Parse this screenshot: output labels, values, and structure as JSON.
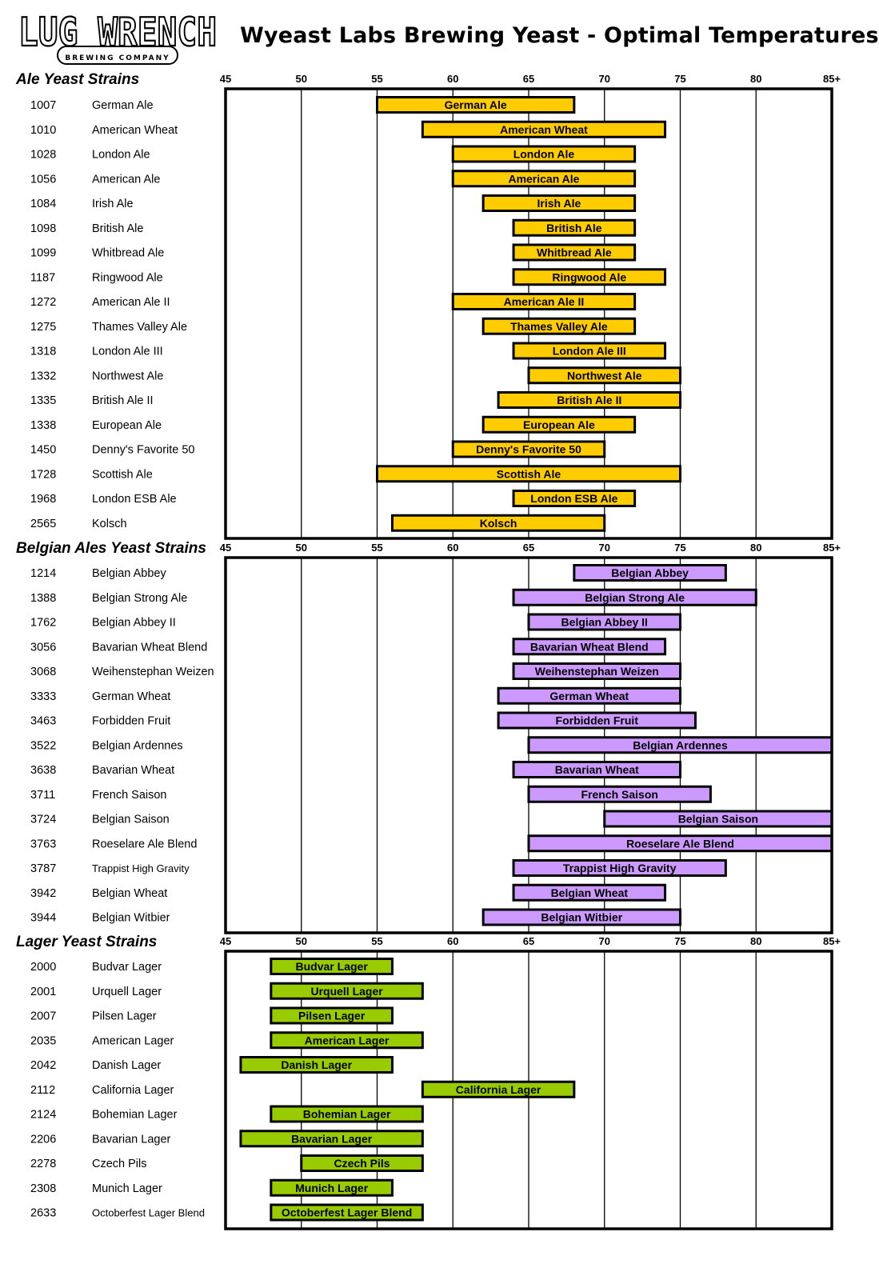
{
  "header": {
    "title": "Wyeast Labs Brewing Yeast - Optimal Temperatures",
    "logo_text": "LUG WRENCH",
    "logo_subtext": "BREWING COMPANY"
  },
  "colors": {
    "ale": "#FFCC00",
    "belgian": "#CC99FF",
    "lager": "#99CC00",
    "border": "#000000"
  },
  "chart_data": {
    "type": "range-bar",
    "title": "Wyeast Labs Brewing Yeast - Optimal Temperatures",
    "xlim": [
      45,
      85
    ],
    "x_ticks": [
      45,
      50,
      55,
      60,
      65,
      70,
      75,
      80,
      85
    ],
    "x_tick_labels": [
      "45",
      "50",
      "55",
      "60",
      "65",
      "70",
      "75",
      "80",
      "85+"
    ],
    "grid": "vertical",
    "groups": [
      {
        "name": "Ale Yeast Strains",
        "color": "#FFCC00",
        "strains": [
          {
            "id": "1007",
            "name": "German Ale",
            "low": 55,
            "high": 68
          },
          {
            "id": "1010",
            "name": "American Wheat",
            "low": 58,
            "high": 74
          },
          {
            "id": "1028",
            "name": "London Ale",
            "low": 60,
            "high": 72
          },
          {
            "id": "1056",
            "name": "American Ale",
            "low": 60,
            "high": 72
          },
          {
            "id": "1084",
            "name": "Irish Ale",
            "low": 62,
            "high": 72
          },
          {
            "id": "1098",
            "name": "British Ale",
            "low": 64,
            "high": 72
          },
          {
            "id": "1099",
            "name": "Whitbread Ale",
            "low": 64,
            "high": 72
          },
          {
            "id": "1187",
            "name": "Ringwood Ale",
            "low": 64,
            "high": 74
          },
          {
            "id": "1272",
            "name": "American Ale II",
            "low": 60,
            "high": 72
          },
          {
            "id": "1275",
            "name": "Thames Valley Ale",
            "low": 62,
            "high": 72
          },
          {
            "id": "1318",
            "name": "London Ale III",
            "low": 64,
            "high": 74
          },
          {
            "id": "1332",
            "name": "Northwest Ale",
            "low": 65,
            "high": 75
          },
          {
            "id": "1335",
            "name": "British Ale II",
            "low": 63,
            "high": 75
          },
          {
            "id": "1338",
            "name": "European Ale",
            "low": 62,
            "high": 72
          },
          {
            "id": "1450",
            "name": "Denny's Favorite 50",
            "low": 60,
            "high": 70
          },
          {
            "id": "1728",
            "name": "Scottish Ale",
            "low": 55,
            "high": 75
          },
          {
            "id": "1968",
            "name": "London ESB Ale",
            "low": 64,
            "high": 72
          },
          {
            "id": "2565",
            "name": "Kolsch",
            "low": 56,
            "high": 70
          }
        ]
      },
      {
        "name": "Belgian Ales Yeast Strains",
        "color": "#CC99FF",
        "strains": [
          {
            "id": "1214",
            "name": "Belgian Abbey",
            "low": 68,
            "high": 78
          },
          {
            "id": "1388",
            "name": "Belgian Strong Ale",
            "low": 64,
            "high": 80
          },
          {
            "id": "1762",
            "name": "Belgian Abbey II",
            "low": 65,
            "high": 75
          },
          {
            "id": "3056",
            "name": "Bavarian Wheat Blend",
            "low": 64,
            "high": 74
          },
          {
            "id": "3068",
            "name": "Weihenstephan Weizen",
            "low": 64,
            "high": 75
          },
          {
            "id": "3333",
            "name": "German Wheat",
            "low": 63,
            "high": 75
          },
          {
            "id": "3463",
            "name": "Forbidden Fruit",
            "low": 63,
            "high": 76
          },
          {
            "id": "3522",
            "name": "Belgian Ardennes",
            "low": 65,
            "high": 85
          },
          {
            "id": "3638",
            "name": "Bavarian Wheat",
            "low": 64,
            "high": 75
          },
          {
            "id": "3711",
            "name": "French Saison",
            "low": 65,
            "high": 77
          },
          {
            "id": "3724",
            "name": "Belgian Saison",
            "low": 70,
            "high": 85
          },
          {
            "id": "3763",
            "name": "Roeselare Ale Blend",
            "low": 65,
            "high": 85
          },
          {
            "id": "3787",
            "name": "Trappist High Gravity",
            "low": 64,
            "high": 78
          },
          {
            "id": "3942",
            "name": "Belgian Wheat",
            "low": 64,
            "high": 74
          },
          {
            "id": "3944",
            "name": "Belgian Witbier",
            "low": 62,
            "high": 75
          }
        ]
      },
      {
        "name": "Lager Yeast Strains",
        "color": "#99CC00",
        "strains": [
          {
            "id": "2000",
            "name": "Budvar Lager",
            "low": 48,
            "high": 56
          },
          {
            "id": "2001",
            "name": "Urquell Lager",
            "low": 48,
            "high": 58
          },
          {
            "id": "2007",
            "name": "Pilsen Lager",
            "low": 48,
            "high": 56
          },
          {
            "id": "2035",
            "name": "American Lager",
            "low": 48,
            "high": 58
          },
          {
            "id": "2042",
            "name": "Danish Lager",
            "low": 46,
            "high": 56
          },
          {
            "id": "2112",
            "name": "California Lager",
            "low": 58,
            "high": 68
          },
          {
            "id": "2124",
            "name": "Bohemian Lager",
            "low": 48,
            "high": 58
          },
          {
            "id": "2206",
            "name": "Bavarian Lager",
            "low": 46,
            "high": 58
          },
          {
            "id": "2278",
            "name": "Czech Pils",
            "low": 50,
            "high": 58
          },
          {
            "id": "2308",
            "name": "Munich Lager",
            "low": 48,
            "high": 56
          },
          {
            "id": "2633",
            "name": "Octoberfest Lager Blend",
            "low": 48,
            "high": 58
          }
        ]
      }
    ]
  }
}
